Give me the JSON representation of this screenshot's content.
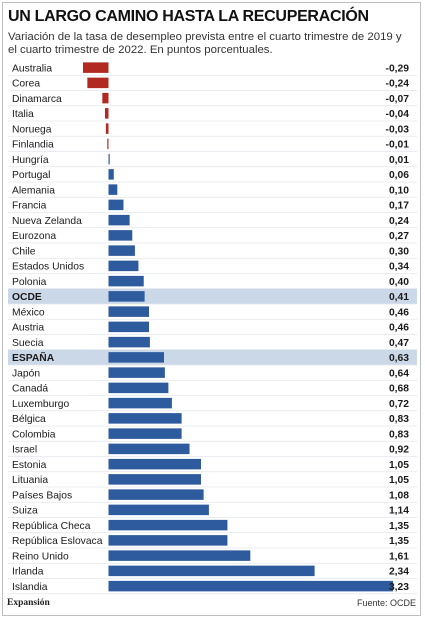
{
  "header": {
    "title": "UN LARGO CAMINO HASTA LA RECUPERACIÓN",
    "subtitle": "Variación de la tasa de desempleo prevista entre el cuarto trimestre de 2019 y el cuarto trimestre de 2022. En puntos porcentuales."
  },
  "footer": {
    "brand": "Expansión",
    "source": "Fuente: OCDE"
  },
  "colors": {
    "positive": "#2e5a9e",
    "negative": "#b02a22",
    "highlight": "#cbd8e8",
    "row_line": "#e2e6ec"
  },
  "chart_data": {
    "type": "bar",
    "orientation": "horizontal",
    "categories": [
      "Australia",
      "Corea",
      "Dinamarca",
      "Italia",
      "Noruega",
      "Finlandia",
      "Hungría",
      "Portugal",
      "Alemania",
      "Francia",
      "Nueva Zelanda",
      "Eurozona",
      "Chile",
      "Estados Unidos",
      "Polonia",
      "OCDE",
      "México",
      "Austria",
      "Suecia",
      "ESPAÑA",
      "Japón",
      "Canadá",
      "Luxemburgo",
      "Bélgica",
      "Colombia",
      "Israel",
      "Estonia",
      "Lituania",
      "Países Bajos",
      "Suiza",
      "República Checa",
      "República Eslovaca",
      "Reino Unido",
      "Irlanda",
      "Islandia"
    ],
    "values": [
      -0.29,
      -0.24,
      -0.07,
      -0.04,
      -0.03,
      -0.01,
      0.01,
      0.06,
      0.1,
      0.17,
      0.24,
      0.27,
      0.3,
      0.34,
      0.4,
      0.41,
      0.46,
      0.46,
      0.47,
      0.63,
      0.64,
      0.68,
      0.72,
      0.83,
      0.83,
      0.92,
      1.05,
      1.05,
      1.08,
      1.14,
      1.35,
      1.35,
      1.61,
      2.34,
      3.23
    ],
    "value_labels": [
      "-0,29",
      "-0,24",
      "-0,07",
      "-0,04",
      "-0,03",
      "-0,01",
      "0,01",
      "0,06",
      "0,10",
      "0,17",
      "0,24",
      "0,27",
      "0,30",
      "0,34",
      "0,40",
      "0,41",
      "0,46",
      "0,46",
      "0,47",
      "0,63",
      "0,64",
      "0,68",
      "0,72",
      "0,83",
      "0,83",
      "0,92",
      "1,05",
      "1,05",
      "1,08",
      "1,14",
      "1,35",
      "1,35",
      "1,61",
      "2,34",
      "3,23"
    ],
    "highlighted": [
      "OCDE",
      "ESPAÑA"
    ],
    "xlim": [
      -0.29,
      3.23
    ]
  }
}
